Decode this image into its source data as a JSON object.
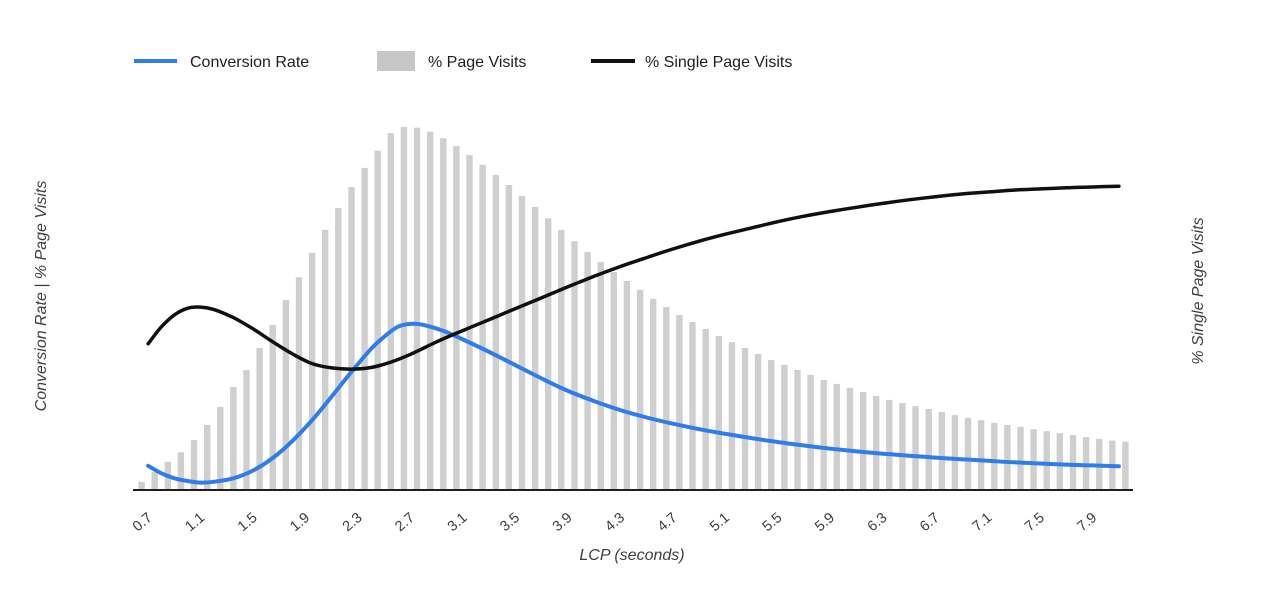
{
  "legend": {
    "position": "top",
    "items": [
      {
        "label": "Conversion Rate",
        "swatch": "line",
        "color": "#2f7ceb"
      },
      {
        "label": "% Page Visits",
        "swatch": "rect",
        "color": "#c7c7c7"
      },
      {
        "label": "% Single Page Visits",
        "swatch": "line",
        "color": "#111111"
      }
    ]
  },
  "axes": {
    "x_title": "LCP (seconds)",
    "y_left_title": "Conversion Rate | % Page Visits",
    "y_right_title": "% Single Page Visits",
    "x_ticks": [
      "0.7",
      "1.1",
      "1.5",
      "1.9",
      "2.3",
      "2.7",
      "3.1",
      "3.5",
      "3.9",
      "4.3",
      "4.7",
      "5.1",
      "5.5",
      "5.9",
      "6.3",
      "6.7",
      "7.1",
      "7.5",
      "7.9"
    ]
  },
  "colors": {
    "conversion_blue": "#2f7ceb",
    "bar_gray": "#cfcfcf",
    "bar_gray_legend": "#c7c7c7",
    "single_black": "#101010",
    "axis_line": "#1f1f1f",
    "tick_text": "#3c3c3c",
    "axis_title_text": "#3f3f3f",
    "background": "#ffffff"
  },
  "chart_data": {
    "type": "bar",
    "subtype": "combo: histogram bars + 2 smoothed line series",
    "title": "",
    "xlabel": "LCP (seconds)",
    "ylabel_left": "Conversion Rate | % Page Visits",
    "ylabel_right": "% Single Page Visits",
    "x_range": [
      0.6,
      8.2
    ],
    "ylim": [
      0,
      100
    ],
    "y_units": "relative % of plot height (no numeric y-axis labels shown in chart)",
    "grid": false,
    "legend_position": "top",
    "x_tick_values": [
      0.7,
      1.1,
      1.5,
      1.9,
      2.3,
      2.7,
      3.1,
      3.5,
      3.9,
      4.3,
      4.7,
      5.1,
      5.5,
      5.9,
      6.3,
      6.7,
      7.1,
      7.5,
      7.9
    ],
    "bars": {
      "name": "% Page Visits",
      "color": "#cfcfcf",
      "x_start": 0.65,
      "x_step": 0.1,
      "values_pct": [
        2.1,
        4.6,
        7.2,
        9.7,
        12.8,
        16.7,
        21.3,
        26.4,
        30.8,
        36.4,
        42.3,
        48.7,
        54.6,
        60.8,
        66.7,
        72.3,
        77.7,
        82.6,
        87.0,
        91.5,
        93.1,
        92.9,
        91.9,
        90.2,
        88.2,
        85.9,
        83.4,
        80.8,
        78.2,
        75.4,
        72.6,
        69.7,
        66.7,
        63.8,
        61.0,
        58.5,
        55.9,
        53.6,
        51.3,
        49.0,
        46.9,
        44.9,
        43.1,
        41.3,
        39.5,
        37.9,
        36.4,
        34.9,
        33.3,
        32.1,
        30.8,
        29.5,
        28.2,
        27.2,
        26.2,
        25.1,
        24.1,
        23.1,
        22.3,
        21.5,
        20.8,
        20.0,
        19.2,
        18.5,
        17.9,
        17.2,
        16.7,
        16.2,
        15.6,
        15.1,
        14.6,
        14.1,
        13.6,
        13.1,
        12.7,
        12.4
      ]
    },
    "series": [
      {
        "name": "Conversion Rate",
        "color": "#2f7ceb",
        "stroke_width": 4,
        "points": [
          [
            0.7,
            6.2
          ],
          [
            0.8,
            4.3
          ],
          [
            0.9,
            3.0
          ],
          [
            1.0,
            2.3
          ],
          [
            1.1,
            1.9
          ],
          [
            1.2,
            2.1
          ],
          [
            1.35,
            3.0
          ],
          [
            1.5,
            5.0
          ],
          [
            1.65,
            8.2
          ],
          [
            1.8,
            12.6
          ],
          [
            1.95,
            17.9
          ],
          [
            2.1,
            24.0
          ],
          [
            2.25,
            30.3
          ],
          [
            2.4,
            36.2
          ],
          [
            2.5,
            39.3
          ],
          [
            2.6,
            41.8
          ],
          [
            2.7,
            42.6
          ],
          [
            2.8,
            42.3
          ],
          [
            2.95,
            40.8
          ],
          [
            3.1,
            38.6
          ],
          [
            3.3,
            35.4
          ],
          [
            3.5,
            32.0
          ],
          [
            3.7,
            28.6
          ],
          [
            3.9,
            25.4
          ],
          [
            4.1,
            22.8
          ],
          [
            4.3,
            20.5
          ],
          [
            4.5,
            18.6
          ],
          [
            4.7,
            17.0
          ],
          [
            4.9,
            15.6
          ],
          [
            5.1,
            14.4
          ],
          [
            5.3,
            13.3
          ],
          [
            5.5,
            12.3
          ],
          [
            5.7,
            11.4
          ],
          [
            5.9,
            10.6
          ],
          [
            6.1,
            9.9
          ],
          [
            6.3,
            9.3
          ],
          [
            6.5,
            8.8
          ],
          [
            6.7,
            8.3
          ],
          [
            6.9,
            7.9
          ],
          [
            7.1,
            7.5
          ],
          [
            7.3,
            7.1
          ],
          [
            7.5,
            6.8
          ],
          [
            7.7,
            6.5
          ],
          [
            7.9,
            6.3
          ],
          [
            8.1,
            6.1
          ]
        ]
      },
      {
        "name": "% Single Page Visits",
        "color": "#101010",
        "stroke_width": 3.5,
        "points": [
          [
            0.7,
            37.5
          ],
          [
            0.8,
            41.8
          ],
          [
            0.9,
            44.9
          ],
          [
            1.0,
            46.6
          ],
          [
            1.1,
            46.9
          ],
          [
            1.2,
            46.3
          ],
          [
            1.35,
            44.2
          ],
          [
            1.5,
            41.3
          ],
          [
            1.65,
            38.0
          ],
          [
            1.8,
            34.9
          ],
          [
            1.95,
            32.4
          ],
          [
            2.1,
            31.3
          ],
          [
            2.25,
            31.0
          ],
          [
            2.4,
            31.4
          ],
          [
            2.55,
            32.8
          ],
          [
            2.7,
            34.8
          ],
          [
            2.9,
            38.0
          ],
          [
            3.1,
            40.9
          ],
          [
            3.3,
            43.7
          ],
          [
            3.5,
            46.5
          ],
          [
            3.7,
            49.3
          ],
          [
            3.9,
            52.1
          ],
          [
            4.1,
            54.8
          ],
          [
            4.3,
            57.3
          ],
          [
            4.5,
            59.6
          ],
          [
            4.7,
            61.8
          ],
          [
            4.9,
            63.8
          ],
          [
            5.1,
            65.6
          ],
          [
            5.3,
            67.2
          ],
          [
            5.5,
            68.8
          ],
          [
            5.7,
            70.2
          ],
          [
            5.9,
            71.4
          ],
          [
            6.1,
            72.5
          ],
          [
            6.3,
            73.5
          ],
          [
            6.5,
            74.4
          ],
          [
            6.7,
            75.2
          ],
          [
            6.9,
            75.9
          ],
          [
            7.1,
            76.4
          ],
          [
            7.3,
            76.9
          ],
          [
            7.5,
            77.2
          ],
          [
            7.7,
            77.5
          ],
          [
            7.9,
            77.7
          ],
          [
            8.1,
            77.9
          ]
        ]
      }
    ]
  }
}
